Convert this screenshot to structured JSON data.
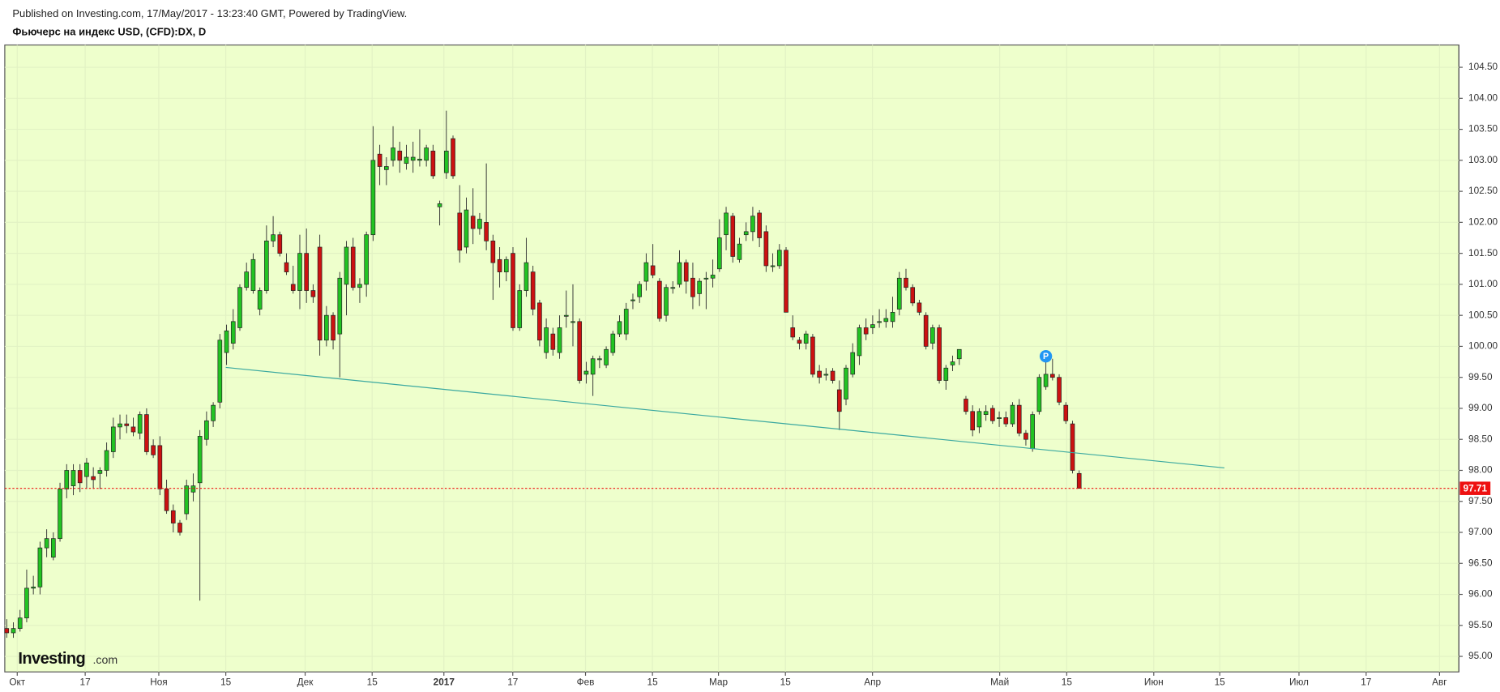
{
  "header": {
    "published": "Published on Investing.com, 17/May/2017 - 13:23:40 GMT, Powered by TradingView."
  },
  "logo": {
    "name": "Investing",
    "suffix": ".com"
  },
  "chart_data": {
    "type": "candlestick",
    "title": "Фьючерс на индекс USD, (CFD):DX, D",
    "up_color": "#22c322",
    "down_color": "#cc1111",
    "grid": true,
    "x": [
      0,
      1,
      2,
      3,
      4,
      5,
      6,
      7,
      8,
      9,
      10,
      11,
      12,
      13,
      14,
      15,
      16,
      17,
      18,
      19,
      20,
      21,
      22,
      23,
      24,
      25,
      26,
      27,
      28,
      29,
      30,
      31,
      32,
      33,
      34,
      35,
      36,
      37,
      38,
      39,
      40,
      41,
      42,
      43,
      44,
      45,
      46,
      47,
      48,
      49,
      50,
      51,
      52,
      53,
      54,
      55,
      56,
      57,
      58,
      59,
      60,
      61,
      62,
      63,
      64,
      65,
      66,
      67,
      68,
      69,
      70,
      71,
      72,
      73,
      74,
      75,
      76,
      77,
      78,
      79,
      80,
      81,
      82,
      83,
      84,
      85,
      86,
      87,
      88,
      89,
      90,
      91,
      92,
      93,
      94,
      95,
      96,
      97,
      98,
      99,
      100,
      101,
      102,
      103,
      104,
      105,
      106,
      107,
      108,
      109,
      110,
      111,
      112,
      113,
      114,
      115,
      116,
      117,
      118,
      119,
      120,
      121,
      122,
      123,
      124,
      125,
      126,
      127,
      128,
      129,
      130,
      131,
      132,
      133,
      134,
      135,
      136,
      137,
      138,
      139,
      140,
      141,
      142,
      143,
      144,
      145,
      146,
      147,
      148,
      149,
      150,
      151,
      152,
      153,
      154,
      155,
      156,
      157,
      158,
      159,
      160,
      161
    ],
    "open": [
      95.45,
      95.38,
      95.45,
      95.62,
      96.1,
      96.12,
      96.75,
      96.6,
      96.9,
      97.7,
      97.75,
      98.0,
      97.9,
      97.9,
      97.95,
      98.0,
      98.3,
      98.7,
      98.75,
      98.7,
      98.6,
      98.9,
      98.4,
      98.4,
      97.7,
      97.35,
      97.15,
      97.3,
      97.65,
      97.8,
      98.5,
      98.8,
      99.1,
      99.9,
      100.05,
      100.3,
      100.95,
      100.9,
      100.6,
      100.9,
      101.7,
      101.8,
      101.35,
      101.0,
      100.9,
      101.5,
      100.9,
      101.6,
      100.1,
      100.5,
      100.2,
      101.0,
      101.6,
      100.95,
      101.0,
      101.8,
      103.1,
      102.85,
      103.0,
      103.15,
      102.95,
      103.0,
      103.0,
      103.0,
      103.15,
      102.25,
      102.8,
      103.35,
      102.15,
      101.6,
      102.1,
      101.9,
      102.0,
      101.7,
      101.4,
      101.2,
      101.5,
      100.3,
      100.9,
      101.2,
      100.7,
      99.9,
      100.2,
      99.9,
      100.5,
      100.4,
      100.4,
      99.55,
      99.55,
      99.8,
      99.7,
      99.9,
      100.2,
      100.2,
      100.75,
      100.8,
      101.05,
      101.3,
      101.05,
      100.5,
      100.95,
      101.0,
      101.35,
      101.1,
      100.85,
      101.1,
      101.1,
      101.25,
      101.8,
      102.1,
      101.4,
      101.8,
      101.85,
      102.15,
      101.85,
      101.3,
      101.3,
      101.55,
      100.3,
      100.1,
      100.05,
      100.15,
      99.6,
      99.55,
      99.6,
      99.3,
      99.15,
      99.55,
      99.85,
      100.3,
      100.3,
      100.4,
      100.4,
      100.4,
      100.6,
      101.1,
      100.95,
      100.7,
      100.5,
      100.05,
      100.3,
      99.45,
      99.7,
      99.8,
      99.15,
      98.95,
      98.7,
      98.9,
      99.0,
      98.85,
      98.85,
      98.75,
      99.05,
      98.6,
      98.35,
      98.95,
      99.35,
      99.55,
      99.5,
      99.05,
      98.75,
      97.95
    ],
    "high": [
      95.6,
      95.55,
      95.75,
      96.4,
      96.3,
      96.85,
      97.05,
      97.0,
      97.8,
      98.1,
      98.1,
      98.1,
      98.2,
      98.05,
      98.05,
      98.45,
      98.85,
      98.9,
      98.9,
      98.85,
      98.95,
      99.0,
      98.5,
      98.55,
      97.85,
      97.45,
      97.2,
      97.85,
      97.95,
      98.65,
      98.95,
      99.1,
      100.2,
      100.35,
      100.6,
      101.0,
      101.35,
      101.5,
      100.95,
      101.95,
      102.1,
      101.85,
      101.5,
      101.3,
      101.8,
      101.9,
      101.0,
      101.8,
      100.65,
      100.55,
      101.2,
      101.7,
      101.75,
      101.1,
      101.85,
      103.55,
      103.25,
      103.05,
      103.55,
      103.3,
      103.25,
      103.3,
      103.5,
      103.25,
      103.25,
      102.35,
      103.8,
      103.4,
      102.6,
      102.4,
      102.55,
      102.15,
      102.95,
      101.8,
      101.6,
      101.45,
      101.6,
      101.0,
      101.75,
      101.3,
      100.75,
      100.45,
      100.3,
      100.5,
      100.9,
      101.0,
      100.45,
      99.75,
      99.85,
      99.85,
      100.0,
      100.25,
      100.5,
      100.7,
      100.85,
      101.05,
      101.5,
      101.65,
      101.1,
      101.0,
      101.05,
      101.55,
      101.4,
      101.35,
      101.1,
      101.2,
      101.4,
      102.05,
      102.25,
      102.15,
      101.75,
      102.0,
      102.25,
      102.2,
      101.95,
      101.5,
      101.65,
      101.6,
      100.5,
      100.15,
      100.25,
      100.2,
      99.7,
      99.65,
      99.65,
      99.45,
      99.7,
      100.05,
      100.35,
      100.45,
      100.5,
      100.6,
      100.6,
      100.8,
      101.2,
      101.25,
      101.0,
      100.75,
      100.55,
      100.35,
      100.35,
      99.7,
      99.85,
      99.95,
      99.2,
      99.05,
      99.0,
      99.05,
      99.05,
      98.95,
      98.95,
      99.1,
      99.15,
      98.65,
      98.95,
      99.55,
      99.75,
      99.8,
      99.55,
      99.1,
      98.8,
      98.0
    ],
    "low": [
      95.3,
      95.3,
      95.4,
      95.55,
      96.0,
      96.0,
      96.6,
      96.55,
      96.85,
      97.55,
      97.6,
      97.65,
      97.7,
      97.7,
      97.7,
      97.9,
      98.2,
      98.5,
      98.6,
      98.55,
      98.5,
      98.25,
      98.2,
      97.6,
      97.3,
      97.0,
      96.95,
      97.2,
      97.5,
      95.9,
      98.4,
      98.7,
      99.0,
      99.7,
      99.95,
      100.25,
      100.9,
      100.85,
      100.5,
      100.85,
      101.6,
      101.45,
      101.15,
      100.85,
      100.6,
      100.7,
      100.7,
      99.85,
      100.0,
      99.95,
      99.5,
      100.5,
      100.9,
      100.7,
      100.8,
      101.7,
      102.6,
      102.6,
      102.9,
      102.8,
      102.85,
      102.8,
      102.9,
      102.9,
      102.7,
      101.95,
      102.7,
      102.7,
      101.35,
      101.5,
      101.65,
      101.8,
      101.55,
      100.75,
      100.95,
      101.05,
      100.25,
      100.25,
      100.8,
      100.5,
      100.0,
      99.8,
      99.85,
      99.8,
      100.3,
      100.0,
      99.4,
      99.4,
      99.2,
      99.65,
      99.65,
      99.85,
      100.15,
      100.1,
      100.6,
      100.7,
      100.9,
      101.1,
      100.4,
      100.4,
      100.85,
      100.95,
      100.85,
      100.6,
      100.65,
      100.6,
      100.95,
      101.2,
      101.55,
      101.35,
      101.35,
      101.7,
      101.7,
      101.6,
      101.2,
      101.2,
      101.25,
      100.55,
      100.1,
      99.95,
      99.95,
      99.5,
      99.4,
      99.45,
      99.4,
      98.65,
      99.05,
      99.5,
      99.7,
      100.1,
      100.2,
      100.3,
      100.3,
      100.3,
      100.5,
      100.9,
      100.65,
      100.5,
      99.95,
      99.95,
      99.4,
      99.3,
      99.6,
      99.7,
      98.9,
      98.55,
      98.6,
      98.8,
      98.75,
      98.7,
      98.7,
      98.7,
      98.55,
      98.4,
      98.3,
      98.9,
      99.3,
      99.45,
      99.05,
      98.75,
      97.95,
      97.71
    ],
    "close": [
      95.38,
      95.45,
      95.62,
      96.1,
      96.12,
      96.75,
      96.9,
      96.9,
      97.7,
      98.0,
      98.0,
      97.8,
      98.12,
      97.85,
      98.0,
      98.32,
      98.7,
      98.75,
      98.72,
      98.62,
      98.9,
      98.3,
      98.25,
      97.7,
      97.35,
      97.15,
      97.0,
      97.75,
      97.75,
      98.55,
      98.8,
      99.05,
      100.1,
      100.25,
      100.4,
      100.95,
      101.2,
      101.4,
      100.9,
      101.7,
      101.8,
      101.5,
      101.2,
      100.9,
      101.5,
      100.9,
      100.8,
      100.1,
      100.5,
      100.1,
      101.1,
      101.6,
      100.95,
      101.0,
      101.8,
      103.0,
      102.9,
      102.9,
      103.2,
      103.0,
      103.05,
      103.05,
      103.02,
      103.2,
      102.75,
      102.3,
      103.15,
      102.75,
      101.55,
      102.2,
      101.9,
      102.05,
      101.7,
      101.35,
      101.2,
      101.4,
      100.3,
      100.9,
      101.35,
      100.6,
      100.1,
      100.3,
      99.95,
      100.3,
      100.5,
      100.4,
      99.45,
      99.6,
      99.8,
      99.8,
      99.95,
      100.2,
      100.4,
      100.6,
      100.75,
      101.0,
      101.35,
      101.15,
      100.45,
      100.95,
      100.95,
      101.35,
      101.05,
      100.8,
      101.05,
      101.1,
      101.15,
      101.75,
      102.15,
      101.45,
      101.65,
      101.85,
      102.1,
      101.75,
      101.3,
      101.3,
      101.55,
      100.55,
      100.15,
      100.05,
      100.2,
      99.55,
      99.5,
      99.55,
      99.45,
      98.95,
      99.65,
      99.9,
      100.3,
      100.2,
      100.35,
      100.4,
      100.45,
      100.55,
      101.1,
      100.95,
      100.7,
      100.55,
      100.0,
      100.3,
      99.45,
      99.65,
      99.75,
      99.95,
      98.95,
      98.65,
      98.95,
      98.95,
      98.8,
      98.85,
      98.75,
      99.05,
      98.6,
      98.5,
      98.9,
      99.5,
      99.55,
      99.5,
      99.1,
      98.8,
      98.0,
      97.71
    ],
    "xlim": [
      -0.29,
      218.0
    ],
    "xticks": [
      {
        "value": 1.58,
        "label": "Окт"
      },
      {
        "value": 11.78,
        "label": "17"
      },
      {
        "value": 22.83,
        "label": "Ноя"
      },
      {
        "value": 32.89,
        "label": "15"
      },
      {
        "value": 44.8,
        "label": "Дек"
      },
      {
        "value": 54.86,
        "label": "15"
      },
      {
        "value": 65.63,
        "label": "2017"
      },
      {
        "value": 75.97,
        "label": "17"
      },
      {
        "value": 86.89,
        "label": "Фев"
      },
      {
        "value": 96.94,
        "label": "15"
      },
      {
        "value": 106.85,
        "label": "Мар"
      },
      {
        "value": 116.9,
        "label": "15"
      },
      {
        "value": 129.97,
        "label": "Апр"
      },
      {
        "value": 149.07,
        "label": "Май"
      },
      {
        "value": 159.13,
        "label": "15"
      },
      {
        "value": 172.2,
        "label": "Июн"
      },
      {
        "value": 182.1,
        "label": "15"
      },
      {
        "value": 194.0,
        "label": "Июл"
      },
      {
        "value": 204.08,
        "label": "17"
      },
      {
        "value": 215.1,
        "label": "Авг"
      }
    ],
    "ylim": [
      94.75,
      104.86
    ],
    "yticks": [
      {
        "value": 95,
        "label": "95.00"
      },
      {
        "value": 95.5,
        "label": "95.50"
      },
      {
        "value": 96,
        "label": "96.00"
      },
      {
        "value": 96.5,
        "label": "96.50"
      },
      {
        "value": 97,
        "label": "97.00"
      },
      {
        "value": 97.5,
        "label": "97.50"
      },
      {
        "value": 98,
        "label": "98.00"
      },
      {
        "value": 98.5,
        "label": "98.50"
      },
      {
        "value": 99,
        "label": "99.00"
      },
      {
        "value": 99.5,
        "label": "99.50"
      },
      {
        "value": 100,
        "label": "100.00"
      },
      {
        "value": 100.5,
        "label": "100.50"
      },
      {
        "value": 101,
        "label": "101.00"
      },
      {
        "value": 101.5,
        "label": "101.50"
      },
      {
        "value": 102,
        "label": "102.00"
      },
      {
        "value": 102.5,
        "label": "102.50"
      },
      {
        "value": 103,
        "label": "103.00"
      },
      {
        "value": 103.5,
        "label": "103.50"
      },
      {
        "value": 104,
        "label": "104.00"
      },
      {
        "value": 104.5,
        "label": "104.50"
      }
    ],
    "last_price": {
      "value": 97.71,
      "label": "97.71",
      "color": "#ee1111"
    },
    "trendline": {
      "x": [
        32.89,
        182.8
      ],
      "y": [
        99.66,
        98.04
      ],
      "color": "#3aa8a0"
    },
    "marker": {
      "label": "P",
      "x": 156,
      "y": 99.84,
      "color": "#2196f3"
    }
  }
}
